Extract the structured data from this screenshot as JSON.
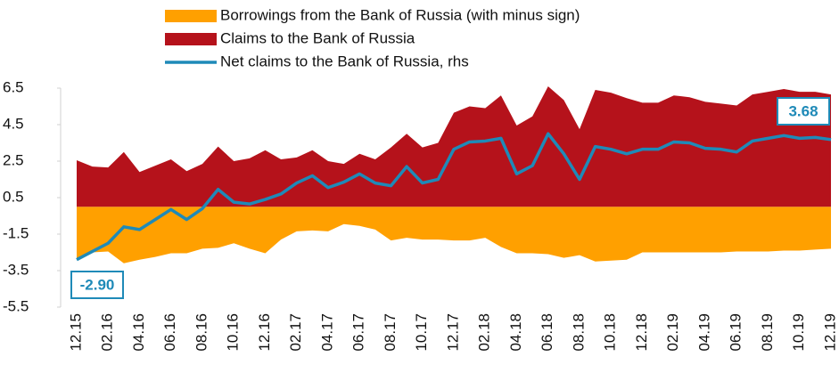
{
  "chart_data": {
    "type": "area-line",
    "categories": [
      "12.15",
      null,
      "02.16",
      null,
      "04.16",
      null,
      "06.16",
      null,
      "08.16",
      null,
      "10.16",
      null,
      "12.16",
      null,
      "02.17",
      null,
      "04.17",
      null,
      "06.17",
      null,
      "08.17",
      null,
      "10.17",
      null,
      "12.17",
      null,
      "02.18",
      null,
      "04.18",
      null,
      "06.18",
      null,
      "08.18",
      null,
      "10.18",
      null,
      "12.18",
      null,
      "02.19",
      null,
      "04.19",
      null,
      "06.19",
      null,
      "08.19",
      null,
      "10.19",
      null,
      "12.19"
    ],
    "series": [
      {
        "name": "Borrowings from the Bank of Russia (with minus sign)",
        "color": "#ffa000",
        "kind": "area",
        "values": [
          -2.85,
          -2.5,
          -2.45,
          -3.1,
          -2.9,
          -2.75,
          -2.55,
          -2.55,
          -2.3,
          -2.25,
          -2.0,
          -2.3,
          -2.55,
          -1.8,
          -1.35,
          -1.3,
          -1.35,
          -0.95,
          -1.05,
          -1.25,
          -1.85,
          -1.7,
          -1.8,
          -1.8,
          -1.85,
          -1.85,
          -1.7,
          -2.2,
          -2.55,
          -2.55,
          -2.6,
          -2.8,
          -2.65,
          -3.0,
          -2.95,
          -2.9,
          -2.5,
          -2.5,
          -2.5,
          -2.5,
          -2.5,
          -2.5,
          -2.45,
          -2.45,
          -2.45,
          -2.4,
          -2.4,
          -2.35,
          -2.3
        ]
      },
      {
        "name": "Claims to the Bank of Russia",
        "color": "#b5121b",
        "kind": "area",
        "values": [
          2.55,
          2.2,
          2.15,
          3.0,
          1.9,
          2.25,
          2.6,
          1.95,
          2.35,
          3.3,
          2.5,
          2.65,
          3.1,
          2.6,
          2.7,
          3.1,
          2.5,
          2.35,
          2.9,
          2.6,
          3.25,
          4.0,
          3.25,
          3.5,
          5.15,
          5.5,
          5.4,
          6.1,
          4.45,
          4.95,
          6.6,
          5.85,
          4.25,
          6.4,
          6.25,
          5.95,
          5.7,
          5.7,
          6.1,
          6.0,
          5.75,
          5.65,
          5.55,
          6.15,
          6.3,
          6.45,
          6.3,
          6.3,
          6.15
        ]
      },
      {
        "name": "Net claims to the Bank of Russia, rhs",
        "color": "#1f8ab8",
        "kind": "line",
        "values": [
          -2.9,
          -2.45,
          -2.0,
          -1.1,
          -1.25,
          -0.7,
          -0.15,
          -0.7,
          -0.1,
          0.95,
          0.25,
          0.15,
          0.4,
          0.7,
          1.3,
          1.7,
          1.05,
          1.35,
          1.8,
          1.3,
          1.15,
          2.2,
          1.3,
          1.5,
          3.15,
          3.55,
          3.6,
          3.75,
          1.8,
          2.25,
          4.0,
          2.9,
          1.5,
          3.3,
          3.15,
          2.9,
          3.15,
          3.15,
          3.55,
          3.5,
          3.2,
          3.15,
          3.0,
          3.6,
          3.75,
          3.9,
          3.75,
          3.8,
          3.68
        ],
        "value_labels": [
          "-2.90",
          null,
          null,
          null,
          null,
          null,
          null,
          null,
          null,
          null,
          null,
          null,
          null,
          null,
          null,
          null,
          null,
          null,
          null,
          null,
          null,
          null,
          null,
          null,
          null,
          null,
          null,
          null,
          null,
          null,
          null,
          null,
          null,
          null,
          null,
          null,
          null,
          null,
          null,
          null,
          null,
          null,
          null,
          null,
          null,
          null,
          null,
          null,
          "3.68"
        ]
      }
    ],
    "ylim": [
      -5.5,
      6.5
    ],
    "yticks": [
      -5.5,
      -3.5,
      -1.5,
      0.5,
      2.5,
      4.5,
      6.5
    ],
    "grid": false,
    "legend": "top"
  }
}
